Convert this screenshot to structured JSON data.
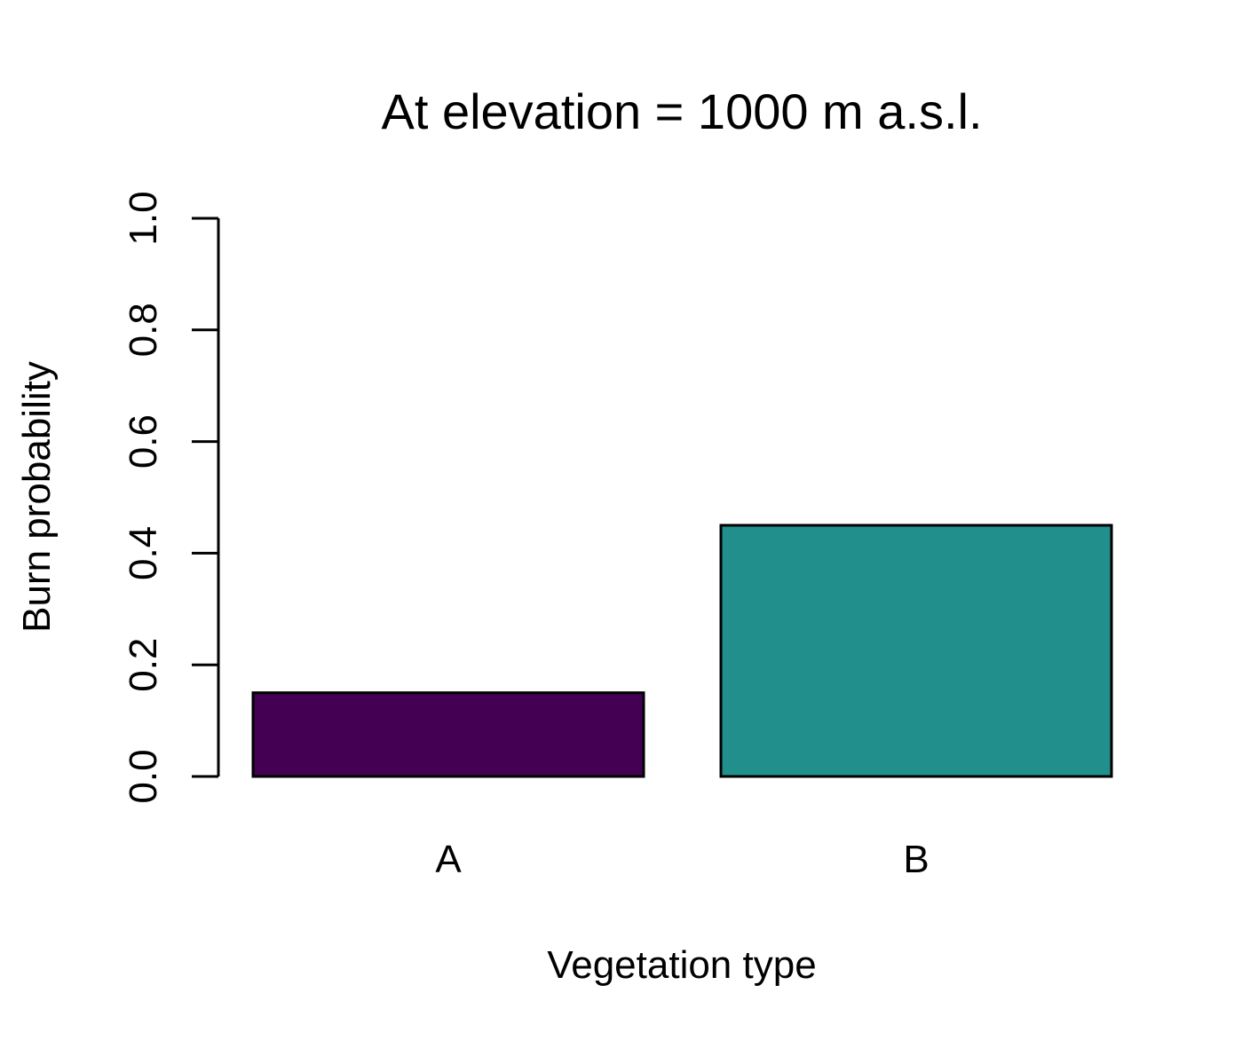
{
  "chart_data": {
    "type": "bar",
    "title": "At elevation = 1000 m a.s.l.",
    "xlabel": "Vegetation type",
    "ylabel": "Burn probability",
    "categories": [
      "A",
      "B"
    ],
    "values": [
      0.15,
      0.45
    ],
    "colors": [
      "#440154",
      "#21908C"
    ],
    "ylim": [
      0,
      1
    ],
    "yticks": [
      0.0,
      0.2,
      0.4,
      0.6,
      0.8,
      1.0
    ],
    "ytick_labels": [
      "0.0",
      "0.2",
      "0.4",
      "0.6",
      "0.8",
      "1.0"
    ],
    "grid": false,
    "legend": "none"
  }
}
